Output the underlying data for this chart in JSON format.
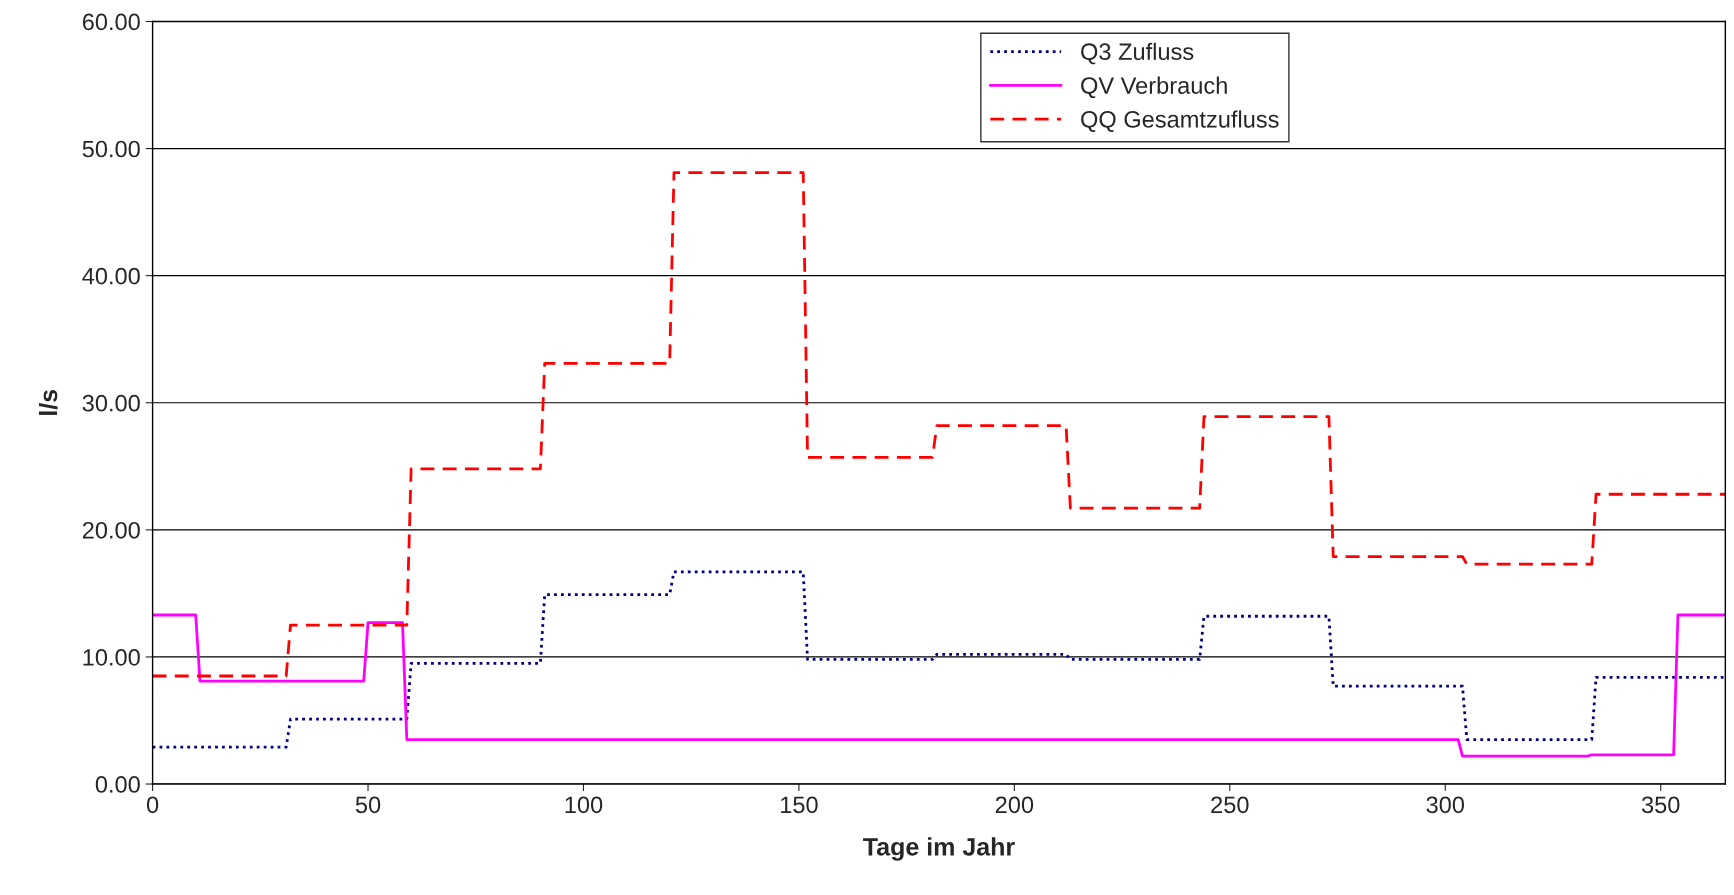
{
  "chart_data": {
    "type": "line",
    "xlabel": "Tage im Jahr",
    "ylabel": "l/s",
    "xlim": [
      0,
      365
    ],
    "xticks": [
      0,
      50,
      100,
      150,
      200,
      250,
      300,
      350
    ],
    "ylim": [
      0,
      60
    ],
    "yticks": [
      {
        "value": 0,
        "label": "0.00"
      },
      {
        "value": 10,
        "label": "10.00"
      },
      {
        "value": 20,
        "label": "20.00"
      },
      {
        "value": 30,
        "label": "30.00"
      },
      {
        "value": 40,
        "label": "40.00"
      },
      {
        "value": 50,
        "label": "50.00"
      },
      {
        "value": 60,
        "label": "60.00"
      }
    ],
    "grid": "y",
    "legend": "top right",
    "series": [
      {
        "name": "Q3 Zufluss",
        "color": "#000080",
        "line_style": "dotted",
        "x": [
          0,
          31,
          32,
          59,
          60,
          90,
          91,
          120,
          121,
          151,
          152,
          181,
          182,
          212,
          213,
          243,
          244,
          273,
          274,
          304,
          305,
          334,
          335,
          365
        ],
        "values": [
          2.9,
          2.9,
          5.1,
          5.1,
          9.5,
          9.5,
          14.9,
          14.9,
          16.7,
          16.7,
          9.8,
          9.8,
          10.2,
          10.2,
          9.8,
          9.8,
          13.2,
          13.2,
          7.7,
          7.7,
          3.5,
          3.5,
          8.4,
          8.4
        ]
      },
      {
        "name": "QV Verbrauch",
        "color": "#ff00ff",
        "line_style": "solid",
        "x": [
          0,
          10,
          11,
          49,
          50,
          58,
          59,
          303,
          304,
          333,
          334,
          353,
          354,
          365
        ],
        "values": [
          13.3,
          13.3,
          8.1,
          8.1,
          12.7,
          12.7,
          3.5,
          3.5,
          2.2,
          2.2,
          2.3,
          2.3,
          13.3,
          13.3
        ]
      },
      {
        "name": "QQ Gesamtzufluss",
        "color": "#ff0000",
        "line_style": "dashed",
        "x": [
          0,
          31,
          32,
          59,
          60,
          90,
          91,
          120,
          121,
          151,
          152,
          181,
          182,
          212,
          213,
          243,
          244,
          273,
          274,
          304,
          305,
          334,
          335,
          365
        ],
        "values": [
          8.5,
          8.5,
          12.5,
          12.5,
          24.8,
          24.8,
          33.1,
          33.1,
          48.1,
          48.1,
          25.7,
          25.7,
          28.2,
          28.2,
          21.7,
          21.7,
          28.9,
          28.9,
          17.9,
          17.9,
          17.3,
          17.3,
          22.8,
          22.8
        ]
      }
    ]
  }
}
